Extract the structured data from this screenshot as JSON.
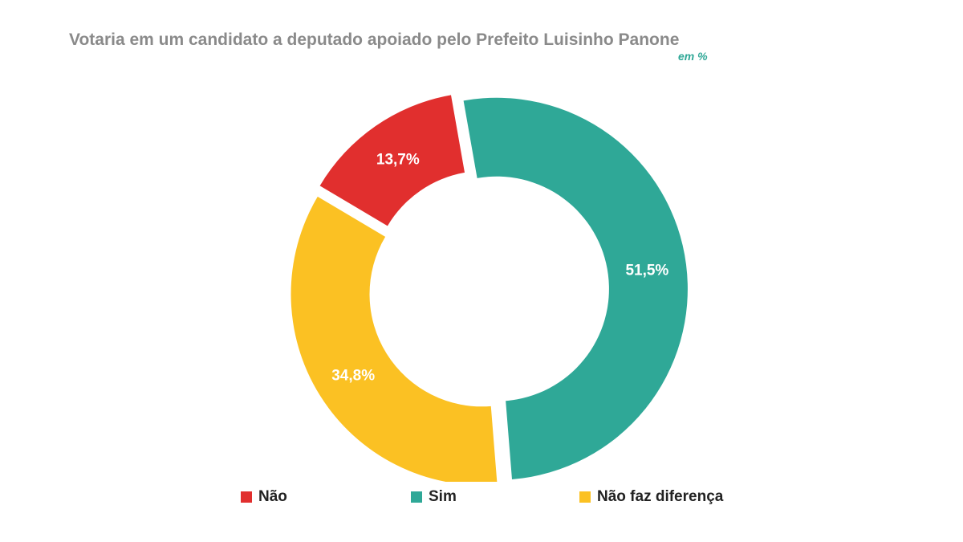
{
  "chart_data": {
    "type": "donut",
    "title": "Votaria em um candidato a deputado apoiado pelo Prefeito Luisinho Panone",
    "subtitle": "em %",
    "slices": [
      {
        "name": "Sim",
        "value": 51.5,
        "label": "51,5%",
        "color": "#2fa897"
      },
      {
        "name": "Não faz diferença",
        "value": 34.8,
        "label": "34,8%",
        "color": "#fbc123"
      },
      {
        "name": "Não",
        "value": 13.7,
        "label": "13,7%",
        "color": "#e12f2e"
      }
    ],
    "legend": [
      {
        "name": "Não",
        "color": "#e12f2e"
      },
      {
        "name": "Sim",
        "color": "#2fa897"
      },
      {
        "name": "Não faz diferença",
        "color": "#fbc123"
      }
    ],
    "legend_position": "bottom"
  }
}
